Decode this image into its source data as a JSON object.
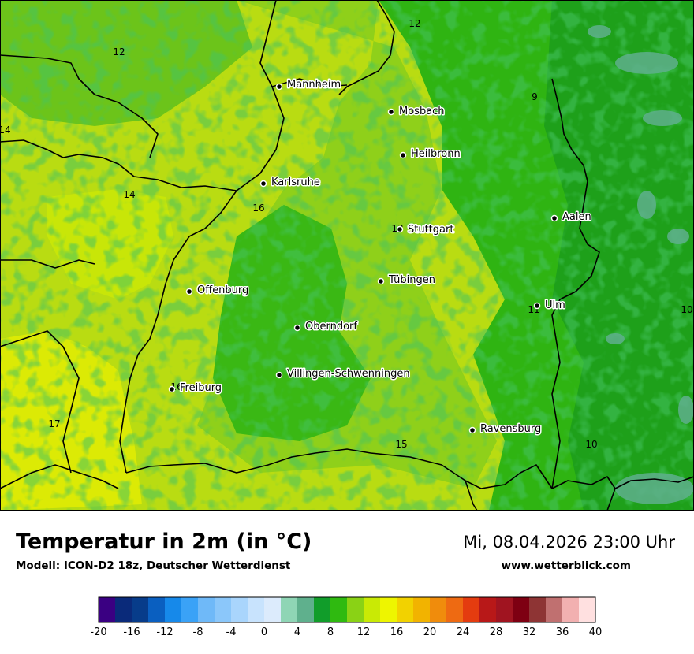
{
  "map": {
    "cities": [
      {
        "name": "Mannheim"
      },
      {
        "name": "Mosbach"
      },
      {
        "name": "Heilbronn"
      },
      {
        "name": "Karlsruhe"
      },
      {
        "name": "Stuttgart"
      },
      {
        "name": "Aalen"
      },
      {
        "name": "Tübingen"
      },
      {
        "name": "Offenburg"
      },
      {
        "name": "Ulm"
      },
      {
        "name": "Oberndorf"
      },
      {
        "name": "Villingen-Schwenningen"
      },
      {
        "name": "Freiburg"
      },
      {
        "name": "Ravensburg"
      }
    ],
    "temperature_labels": [
      "12",
      "12",
      "9",
      "14",
      "14",
      "16",
      "13",
      "11",
      "10",
      "16",
      "17",
      "15",
      "10"
    ]
  },
  "footer": {
    "title": "Temperatur in 2m (in °C)",
    "subtitle": "Modell: ICON-D2 18z, Deutscher Wetterdienst",
    "date": "Mi, 08.04.2026 23:00 Uhr",
    "site": "www.wetterblick.com"
  },
  "legend": {
    "colors": [
      "#3a0082",
      "#0a2a7a",
      "#073c8a",
      "#0a5fc0",
      "#1689ea",
      "#3aa2f7",
      "#6fb9f8",
      "#8bc7fa",
      "#a9d5fc",
      "#c8e3fd",
      "#dcebfc",
      "#8fd5b5",
      "#5fb08d",
      "#119d2a",
      "#2fba10",
      "#8ad215",
      "#c9ea05",
      "#eef500",
      "#f2d200",
      "#f2b300",
      "#f08c0c",
      "#ee6a12",
      "#e43c0f",
      "#b81818",
      "#a01420",
      "#7e0012",
      "#8e3434",
      "#c07070",
      "#f2b0b0",
      "#ffe0e0"
    ],
    "ticks": [
      "-20",
      "-16",
      "-12",
      "-8",
      "-4",
      "0",
      "4",
      "8",
      "12",
      "16",
      "20",
      "24",
      "28",
      "32",
      "36",
      "40"
    ]
  }
}
